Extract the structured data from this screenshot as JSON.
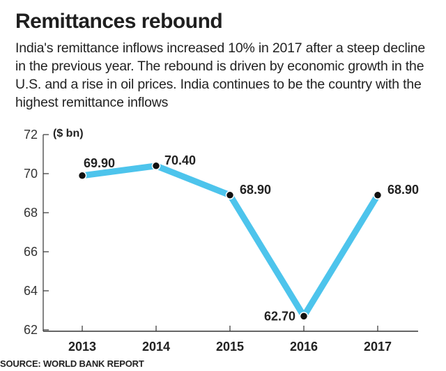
{
  "header": {
    "title": "Remittances rebound",
    "subtitle": "India's remittance inflows increased 10% in 2017 after a steep decline in the previous year. The rebound is driven by economic growth in the U.S. and a rise in oil prices. India continues to be the country with the highest remittance inflows"
  },
  "footer": {
    "source": "SOURCE: WORLD BANK REPORT"
  },
  "chart_data": {
    "type": "line",
    "title": "",
    "unit_label": "($ bn)",
    "xlabel": "",
    "ylabel": "",
    "categories": [
      "2013",
      "2014",
      "2015",
      "2016",
      "2017"
    ],
    "series": [
      {
        "values": [
          69.9,
          70.4,
          68.9,
          62.7,
          68.9
        ],
        "labels": [
          "69.90",
          "70.40",
          "68.90",
          "62.70",
          "68.90"
        ]
      }
    ],
    "ylim": [
      62,
      72
    ],
    "yticks": [
      62,
      64,
      66,
      68,
      70,
      72
    ],
    "grid": false,
    "colors": {
      "line": "#4dc4ec",
      "point": "#111111",
      "axis": "#333333",
      "highlight_label": "#e0202e"
    }
  }
}
